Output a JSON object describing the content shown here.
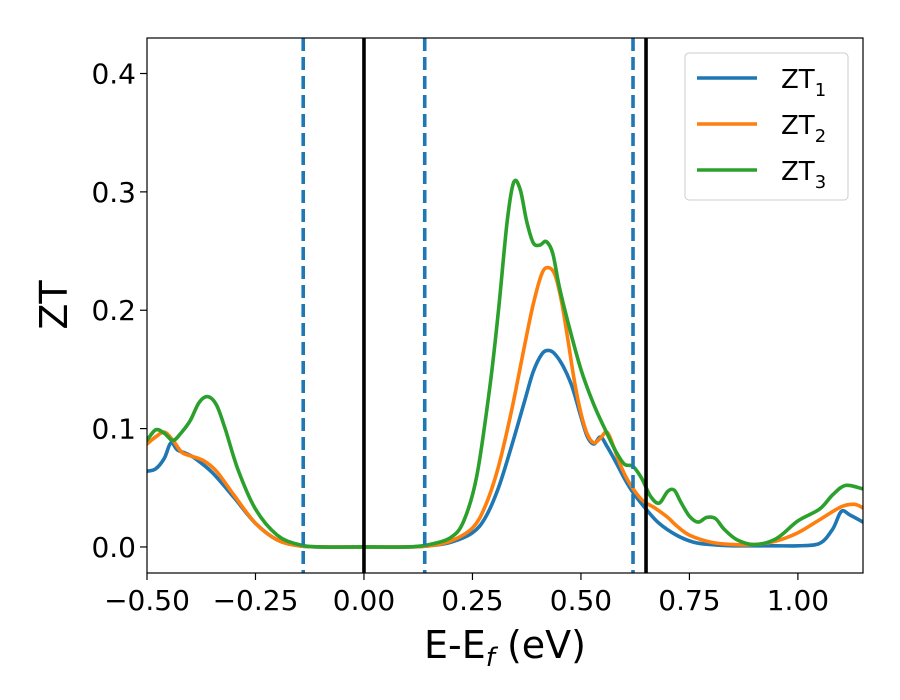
{
  "chart_data": {
    "type": "line",
    "xlabel": "E-E",
    "xlabel_sub": "f",
    "xlabel_suffix": " (eV)",
    "ylabel": "ZT",
    "xlim": [
      -0.5,
      1.15
    ],
    "ylim": [
      -0.022,
      0.43
    ],
    "xticks": [
      -0.5,
      -0.25,
      0.0,
      0.25,
      0.5,
      0.75,
      1.0
    ],
    "xtick_labels": [
      "−0.50",
      "−0.25",
      "0.00",
      "0.25",
      "0.50",
      "0.75",
      "1.00"
    ],
    "yticks": [
      0.0,
      0.1,
      0.2,
      0.3,
      0.4
    ],
    "ytick_labels": [
      "0.0",
      "0.1",
      "0.2",
      "0.3",
      "0.4"
    ],
    "grid": false,
    "legend_position": "top-right",
    "series": [
      {
        "name": "ZT",
        "sub": "1",
        "color": "#1f77b4",
        "points": [
          [
            -0.5,
            0.064
          ],
          [
            -0.48,
            0.066
          ],
          [
            -0.46,
            0.075
          ],
          [
            -0.445,
            0.088
          ],
          [
            -0.43,
            0.082
          ],
          [
            -0.41,
            0.079
          ],
          [
            -0.39,
            0.075
          ],
          [
            -0.35,
            0.063
          ],
          [
            -0.3,
            0.042
          ],
          [
            -0.25,
            0.02
          ],
          [
            -0.2,
            0.006
          ],
          [
            -0.15,
            0.001
          ],
          [
            -0.1,
            0.0
          ],
          [
            0.0,
            0.0
          ],
          [
            0.1,
            0.0
          ],
          [
            0.15,
            0.001
          ],
          [
            0.2,
            0.004
          ],
          [
            0.25,
            0.012
          ],
          [
            0.28,
            0.025
          ],
          [
            0.31,
            0.05
          ],
          [
            0.34,
            0.085
          ],
          [
            0.37,
            0.123
          ],
          [
            0.39,
            0.148
          ],
          [
            0.41,
            0.163
          ],
          [
            0.425,
            0.166
          ],
          [
            0.44,
            0.163
          ],
          [
            0.46,
            0.152
          ],
          [
            0.48,
            0.135
          ],
          [
            0.5,
            0.11
          ],
          [
            0.515,
            0.093
          ],
          [
            0.53,
            0.087
          ],
          [
            0.545,
            0.093
          ],
          [
            0.56,
            0.085
          ],
          [
            0.58,
            0.072
          ],
          [
            0.6,
            0.058
          ],
          [
            0.62,
            0.046
          ],
          [
            0.65,
            0.032
          ],
          [
            0.68,
            0.02
          ],
          [
            0.72,
            0.01
          ],
          [
            0.76,
            0.004
          ],
          [
            0.8,
            0.002
          ],
          [
            0.85,
            0.001
          ],
          [
            0.9,
            0.001
          ],
          [
            0.95,
            0.001
          ],
          [
            1.0,
            0.001
          ],
          [
            1.05,
            0.003
          ],
          [
            1.08,
            0.015
          ],
          [
            1.1,
            0.03
          ],
          [
            1.12,
            0.027
          ],
          [
            1.15,
            0.021
          ]
        ]
      },
      {
        "name": "ZT",
        "sub": "2",
        "color": "#ff7f0e",
        "points": [
          [
            -0.5,
            0.087
          ],
          [
            -0.48,
            0.093
          ],
          [
            -0.46,
            0.097
          ],
          [
            -0.44,
            0.09
          ],
          [
            -0.42,
            0.08
          ],
          [
            -0.4,
            0.077
          ],
          [
            -0.37,
            0.073
          ],
          [
            -0.34,
            0.064
          ],
          [
            -0.3,
            0.044
          ],
          [
            -0.25,
            0.02
          ],
          [
            -0.2,
            0.006
          ],
          [
            -0.15,
            0.001
          ],
          [
            -0.1,
            0.0
          ],
          [
            0.0,
            0.0
          ],
          [
            0.1,
            0.0
          ],
          [
            0.15,
            0.001
          ],
          [
            0.2,
            0.005
          ],
          [
            0.25,
            0.016
          ],
          [
            0.28,
            0.035
          ],
          [
            0.31,
            0.068
          ],
          [
            0.34,
            0.115
          ],
          [
            0.37,
            0.17
          ],
          [
            0.39,
            0.205
          ],
          [
            0.41,
            0.231
          ],
          [
            0.425,
            0.236
          ],
          [
            0.44,
            0.23
          ],
          [
            0.455,
            0.208
          ],
          [
            0.47,
            0.175
          ],
          [
            0.485,
            0.14
          ],
          [
            0.5,
            0.113
          ],
          [
            0.515,
            0.095
          ],
          [
            0.53,
            0.088
          ],
          [
            0.545,
            0.092
          ],
          [
            0.56,
            0.097
          ],
          [
            0.575,
            0.085
          ],
          [
            0.59,
            0.07
          ],
          [
            0.61,
            0.055
          ],
          [
            0.64,
            0.04
          ],
          [
            0.67,
            0.033
          ],
          [
            0.7,
            0.025
          ],
          [
            0.72,
            0.018
          ],
          [
            0.75,
            0.01
          ],
          [
            0.8,
            0.004
          ],
          [
            0.85,
            0.002
          ],
          [
            0.9,
            0.002
          ],
          [
            0.95,
            0.005
          ],
          [
            1.0,
            0.012
          ],
          [
            1.05,
            0.023
          ],
          [
            1.1,
            0.034
          ],
          [
            1.13,
            0.036
          ],
          [
            1.15,
            0.033
          ]
        ]
      },
      {
        "name": "ZT",
        "sub": "3",
        "color": "#2ca02c",
        "points": [
          [
            -0.5,
            0.09
          ],
          [
            -0.48,
            0.099
          ],
          [
            -0.46,
            0.096
          ],
          [
            -0.44,
            0.09
          ],
          [
            -0.42,
            0.097
          ],
          [
            -0.4,
            0.107
          ],
          [
            -0.38,
            0.122
          ],
          [
            -0.36,
            0.127
          ],
          [
            -0.34,
            0.12
          ],
          [
            -0.32,
            0.1
          ],
          [
            -0.29,
            0.065
          ],
          [
            -0.25,
            0.032
          ],
          [
            -0.2,
            0.01
          ],
          [
            -0.15,
            0.002
          ],
          [
            -0.1,
            0.0
          ],
          [
            0.0,
            0.0
          ],
          [
            0.1,
            0.0
          ],
          [
            0.15,
            0.002
          ],
          [
            0.2,
            0.008
          ],
          [
            0.23,
            0.022
          ],
          [
            0.26,
            0.06
          ],
          [
            0.29,
            0.135
          ],
          [
            0.31,
            0.2
          ],
          [
            0.33,
            0.275
          ],
          [
            0.345,
            0.308
          ],
          [
            0.36,
            0.302
          ],
          [
            0.375,
            0.275
          ],
          [
            0.39,
            0.257
          ],
          [
            0.405,
            0.255
          ],
          [
            0.42,
            0.258
          ],
          [
            0.435,
            0.248
          ],
          [
            0.45,
            0.22
          ],
          [
            0.47,
            0.19
          ],
          [
            0.5,
            0.15
          ],
          [
            0.53,
            0.12
          ],
          [
            0.56,
            0.096
          ],
          [
            0.58,
            0.081
          ],
          [
            0.6,
            0.07
          ],
          [
            0.62,
            0.068
          ],
          [
            0.64,
            0.058
          ],
          [
            0.66,
            0.043
          ],
          [
            0.68,
            0.037
          ],
          [
            0.7,
            0.047
          ],
          [
            0.715,
            0.048
          ],
          [
            0.73,
            0.038
          ],
          [
            0.75,
            0.026
          ],
          [
            0.77,
            0.021
          ],
          [
            0.79,
            0.025
          ],
          [
            0.81,
            0.024
          ],
          [
            0.83,
            0.015
          ],
          [
            0.86,
            0.006
          ],
          [
            0.9,
            0.002
          ],
          [
            0.95,
            0.007
          ],
          [
            1.0,
            0.022
          ],
          [
            1.05,
            0.032
          ],
          [
            1.08,
            0.044
          ],
          [
            1.11,
            0.052
          ],
          [
            1.15,
            0.049
          ]
        ]
      }
    ],
    "vlines": [
      {
        "x": -0.14,
        "style": "dashed",
        "color": "#1f77b4"
      },
      {
        "x": 0.0,
        "style": "solid",
        "color": "#000000"
      },
      {
        "x": 0.14,
        "style": "dashed",
        "color": "#1f77b4"
      },
      {
        "x": 0.62,
        "style": "dashed",
        "color": "#1f77b4"
      },
      {
        "x": 0.65,
        "style": "solid",
        "color": "#000000"
      }
    ]
  }
}
